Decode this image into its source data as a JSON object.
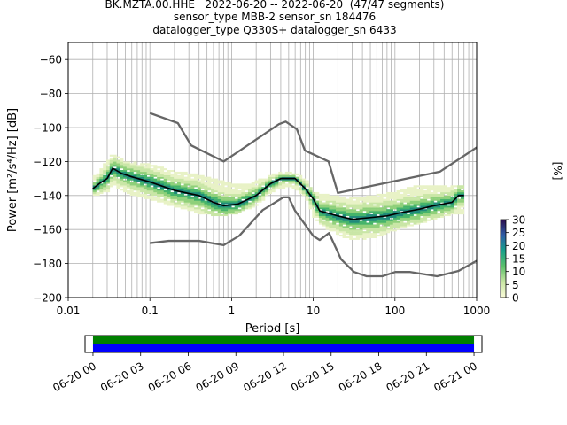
{
  "title_lines": [
    "BK.MZTA.00.HHE   2022-06-20 -- 2022-06-20  (47/47 segments)",
    "sensor_type MBB-2 sensor_sn 184476",
    "datalogger_type Q330S+ datalogger_sn 6433"
  ],
  "colors": {
    "grid": "#b0b0b0",
    "model_lines": "#666666",
    "mode_line": "#000000",
    "coverage_green": "#008000",
    "coverage_blue": "#0000ff"
  },
  "chart_data": [
    {
      "type": "heatmap",
      "subtype": "probabilistic_power_spectral_density",
      "xlabel": "Period [s]",
      "ylabel": "Power [m²/s⁴/Hz] [dB]",
      "x_scale": "log",
      "xlim": [
        0.01,
        1000
      ],
      "ylim": [
        -200,
        -50
      ],
      "x_ticks": [
        0.01,
        0.1,
        1,
        10,
        100,
        1000
      ],
      "x_tick_labels": [
        "0.01",
        "0.1",
        "1",
        "10",
        "100",
        "1000"
      ],
      "y_ticks": [
        -200,
        -180,
        -160,
        -140,
        -120,
        -100,
        -80,
        -60
      ],
      "y_tick_labels": [
        "−200",
        "−180",
        "−160",
        "−140",
        "−120",
        "−100",
        "−80",
        "−60"
      ],
      "grid": true,
      "colorbar": {
        "label": "[%]",
        "range": [
          0,
          30
        ],
        "ticks": [
          0,
          5,
          10,
          15,
          20,
          25,
          30
        ],
        "tick_labels": [
          "0",
          "5",
          "10",
          "15",
          "20",
          "25",
          "30"
        ],
        "colormap": "pqlx-like (pale yellow → green → blue → dark purple)"
      },
      "high_noise_model": [
        [
          0.1,
          -91.5
        ],
        [
          0.22,
          -97.4
        ],
        [
          0.32,
          -110.5
        ],
        [
          0.8,
          -120
        ],
        [
          3.8,
          -98
        ],
        [
          4.6,
          -96.5
        ],
        [
          6.3,
          -101
        ],
        [
          7.9,
          -113.5
        ],
        [
          15.4,
          -120
        ],
        [
          20,
          -138.5
        ],
        [
          354.8,
          -126
        ],
        [
          10000,
          -80
        ]
      ],
      "low_noise_model": [
        [
          0.1,
          -168
        ],
        [
          0.17,
          -166.7
        ],
        [
          0.4,
          -166.7
        ],
        [
          0.8,
          -169.2
        ],
        [
          1.24,
          -163.7
        ],
        [
          2.4,
          -148.6
        ],
        [
          4.3,
          -141.1
        ],
        [
          5,
          -141.1
        ],
        [
          6,
          -149
        ],
        [
          10,
          -163.8
        ],
        [
          12,
          -166.2
        ],
        [
          15.6,
          -162.1
        ],
        [
          21.9,
          -177.5
        ],
        [
          31.6,
          -185
        ],
        [
          45,
          -187.5
        ],
        [
          70,
          -187.5
        ],
        [
          101,
          -185
        ],
        [
          154,
          -185
        ],
        [
          328,
          -187.5
        ],
        [
          600,
          -184.4
        ],
        [
          10000,
          -151.5
        ]
      ],
      "mode": [
        [
          0.02,
          -136
        ],
        [
          0.024,
          -133
        ],
        [
          0.03,
          -130
        ],
        [
          0.035,
          -124
        ],
        [
          0.045,
          -127
        ],
        [
          0.06,
          -129
        ],
        [
          0.1,
          -132
        ],
        [
          0.2,
          -137
        ],
        [
          0.4,
          -140
        ],
        [
          0.6,
          -144
        ],
        [
          0.8,
          -146
        ],
        [
          1.2,
          -145
        ],
        [
          2,
          -140
        ],
        [
          3,
          -133
        ],
        [
          4,
          -130
        ],
        [
          6,
          -130
        ],
        [
          8,
          -136
        ],
        [
          10,
          -142
        ],
        [
          12,
          -149
        ],
        [
          20,
          -152
        ],
        [
          30,
          -154
        ],
        [
          50,
          -153
        ],
        [
          80,
          -152
        ],
        [
          120,
          -150
        ],
        [
          200,
          -148
        ],
        [
          300,
          -146
        ],
        [
          500,
          -144
        ],
        [
          600,
          -140
        ],
        [
          700,
          -140
        ]
      ],
      "density_band": [
        [
          0.02,
          -140,
          -130
        ],
        [
          0.03,
          -138,
          -120
        ],
        [
          0.035,
          -134,
          -116
        ],
        [
          0.05,
          -138,
          -120
        ],
        [
          0.1,
          -142,
          -122
        ],
        [
          0.2,
          -146,
          -126
        ],
        [
          0.4,
          -150,
          -128
        ],
        [
          0.8,
          -152,
          -132
        ],
        [
          1.2,
          -150,
          -134
        ],
        [
          2,
          -146,
          -132
        ],
        [
          3,
          -138,
          -128
        ],
        [
          5,
          -134,
          -126
        ],
        [
          8,
          -140,
          -130
        ],
        [
          10,
          -152,
          -138
        ],
        [
          15,
          -160,
          -140
        ],
        [
          30,
          -166,
          -142
        ],
        [
          60,
          -164,
          -140
        ],
        [
          100,
          -160,
          -138
        ],
        [
          200,
          -156,
          -134
        ],
        [
          400,
          -152,
          -134
        ],
        [
          700,
          -150,
          -134
        ]
      ]
    },
    {
      "type": "timeline",
      "subtype": "data_coverage",
      "x_tick_labels": [
        "06-20 00",
        "06-20 03",
        "06-20 06",
        "06-20 09",
        "06-20 12",
        "06-20 15",
        "06-20 18",
        "06-20 21",
        "06-21 00"
      ],
      "x_range_hours": [
        -0.5,
        24.5
      ],
      "coverage_hours": [
        0,
        24
      ]
    }
  ]
}
